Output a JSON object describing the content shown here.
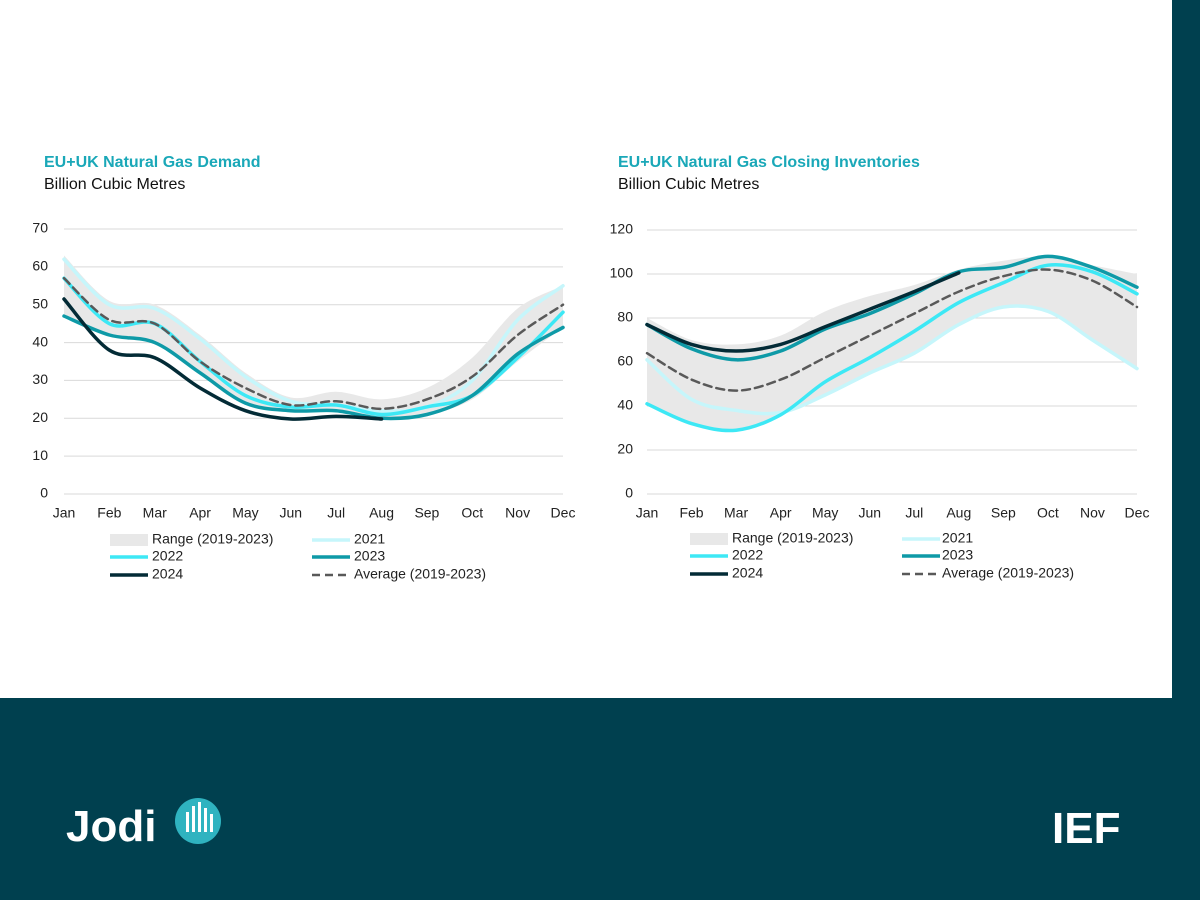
{
  "chart_data": [
    {
      "type": "line",
      "title": "EU+UK Natural Gas Demand",
      "subtitle": "Billion Cubic Metres",
      "categories": [
        "Jan",
        "Feb",
        "Mar",
        "Apr",
        "May",
        "Jun",
        "Jul",
        "Aug",
        "Sep",
        "Oct",
        "Nov",
        "Dec"
      ],
      "ylim": [
        0,
        70
      ],
      "yticks": [
        0,
        10,
        20,
        30,
        40,
        50,
        60,
        70
      ],
      "grid": true,
      "range": {
        "name": "Range (2019-2023)",
        "color": "#e8e8e8",
        "low": [
          47,
          42,
          40,
          32,
          24,
          22,
          22,
          20,
          21,
          25,
          35,
          44
        ],
        "high": [
          63,
          51,
          50,
          42,
          32,
          25.5,
          27,
          25,
          28,
          36,
          49,
          55
        ]
      },
      "series": [
        {
          "name": "2021",
          "color": "#c6f6fb",
          "values": [
            62,
            50,
            49,
            41,
            31,
            24.5,
            23.5,
            22,
            23,
            30,
            46,
            55
          ]
        },
        {
          "name": "2022",
          "color": "#3de8f5",
          "values": [
            57,
            45,
            45,
            35,
            26,
            23,
            23.5,
            21,
            23,
            26,
            36,
            48
          ]
        },
        {
          "name": "2023",
          "color": "#0e9aa7",
          "values": [
            47,
            42,
            40,
            32,
            24,
            22,
            22,
            20,
            21,
            26,
            37,
            44
          ]
        },
        {
          "name": "2024",
          "color": "#032b36",
          "values": [
            51.5,
            38,
            36,
            28,
            22,
            19.8,
            20.5,
            19.8,
            null,
            null,
            null,
            null
          ]
        },
        {
          "name": "Average (2019-2023)",
          "color": "#595959",
          "dash": true,
          "values": [
            57,
            46,
            45,
            35,
            28,
            23.5,
            24.5,
            22.5,
            25,
            31,
            42,
            50
          ]
        }
      ]
    },
    {
      "type": "line",
      "title": "EU+UK Natural Gas Closing Inventories",
      "subtitle": "Billion Cubic Metres",
      "categories": [
        "Jan",
        "Feb",
        "Mar",
        "Apr",
        "May",
        "Jun",
        "Jul",
        "Aug",
        "Sep",
        "Oct",
        "Nov",
        "Dec"
      ],
      "ylim": [
        0,
        120
      ],
      "yticks": [
        0,
        20,
        40,
        60,
        80,
        100,
        120
      ],
      "grid": true,
      "range": {
        "name": "Range (2019-2023)",
        "color": "#e8e8e8",
        "low": [
          41,
          32,
          29,
          36,
          45,
          55,
          64,
          77,
          85,
          83,
          70,
          57
        ],
        "high": [
          80,
          70,
          68,
          72,
          83,
          90,
          95,
          102,
          106,
          108,
          104,
          100
        ]
      },
      "series": [
        {
          "name": "2021",
          "color": "#c6f6fb",
          "values": [
            61,
            43,
            38,
            37,
            45,
            55,
            64,
            77,
            85,
            83,
            70,
            57
          ]
        },
        {
          "name": "2022",
          "color": "#3de8f5",
          "values": [
            41,
            32,
            29,
            36,
            51,
            62,
            74,
            87,
            96,
            104,
            101,
            91
          ]
        },
        {
          "name": "2023",
          "color": "#0e9aa7",
          "values": [
            77,
            66,
            61,
            65,
            75,
            82,
            91,
            101,
            103,
            108,
            103,
            94
          ]
        },
        {
          "name": "2024",
          "color": "#032b36",
          "values": [
            77,
            68,
            65,
            68,
            76,
            84,
            92,
            100.5,
            null,
            null,
            null,
            null
          ]
        },
        {
          "name": "Average (2019-2023)",
          "color": "#595959",
          "dash": true,
          "values": [
            64,
            52,
            47,
            52,
            62,
            72,
            82,
            92,
            99,
            102,
            97,
            85
          ]
        }
      ]
    }
  ],
  "footer": {
    "left_logo": "Jodi",
    "right_logo": "IEF"
  }
}
